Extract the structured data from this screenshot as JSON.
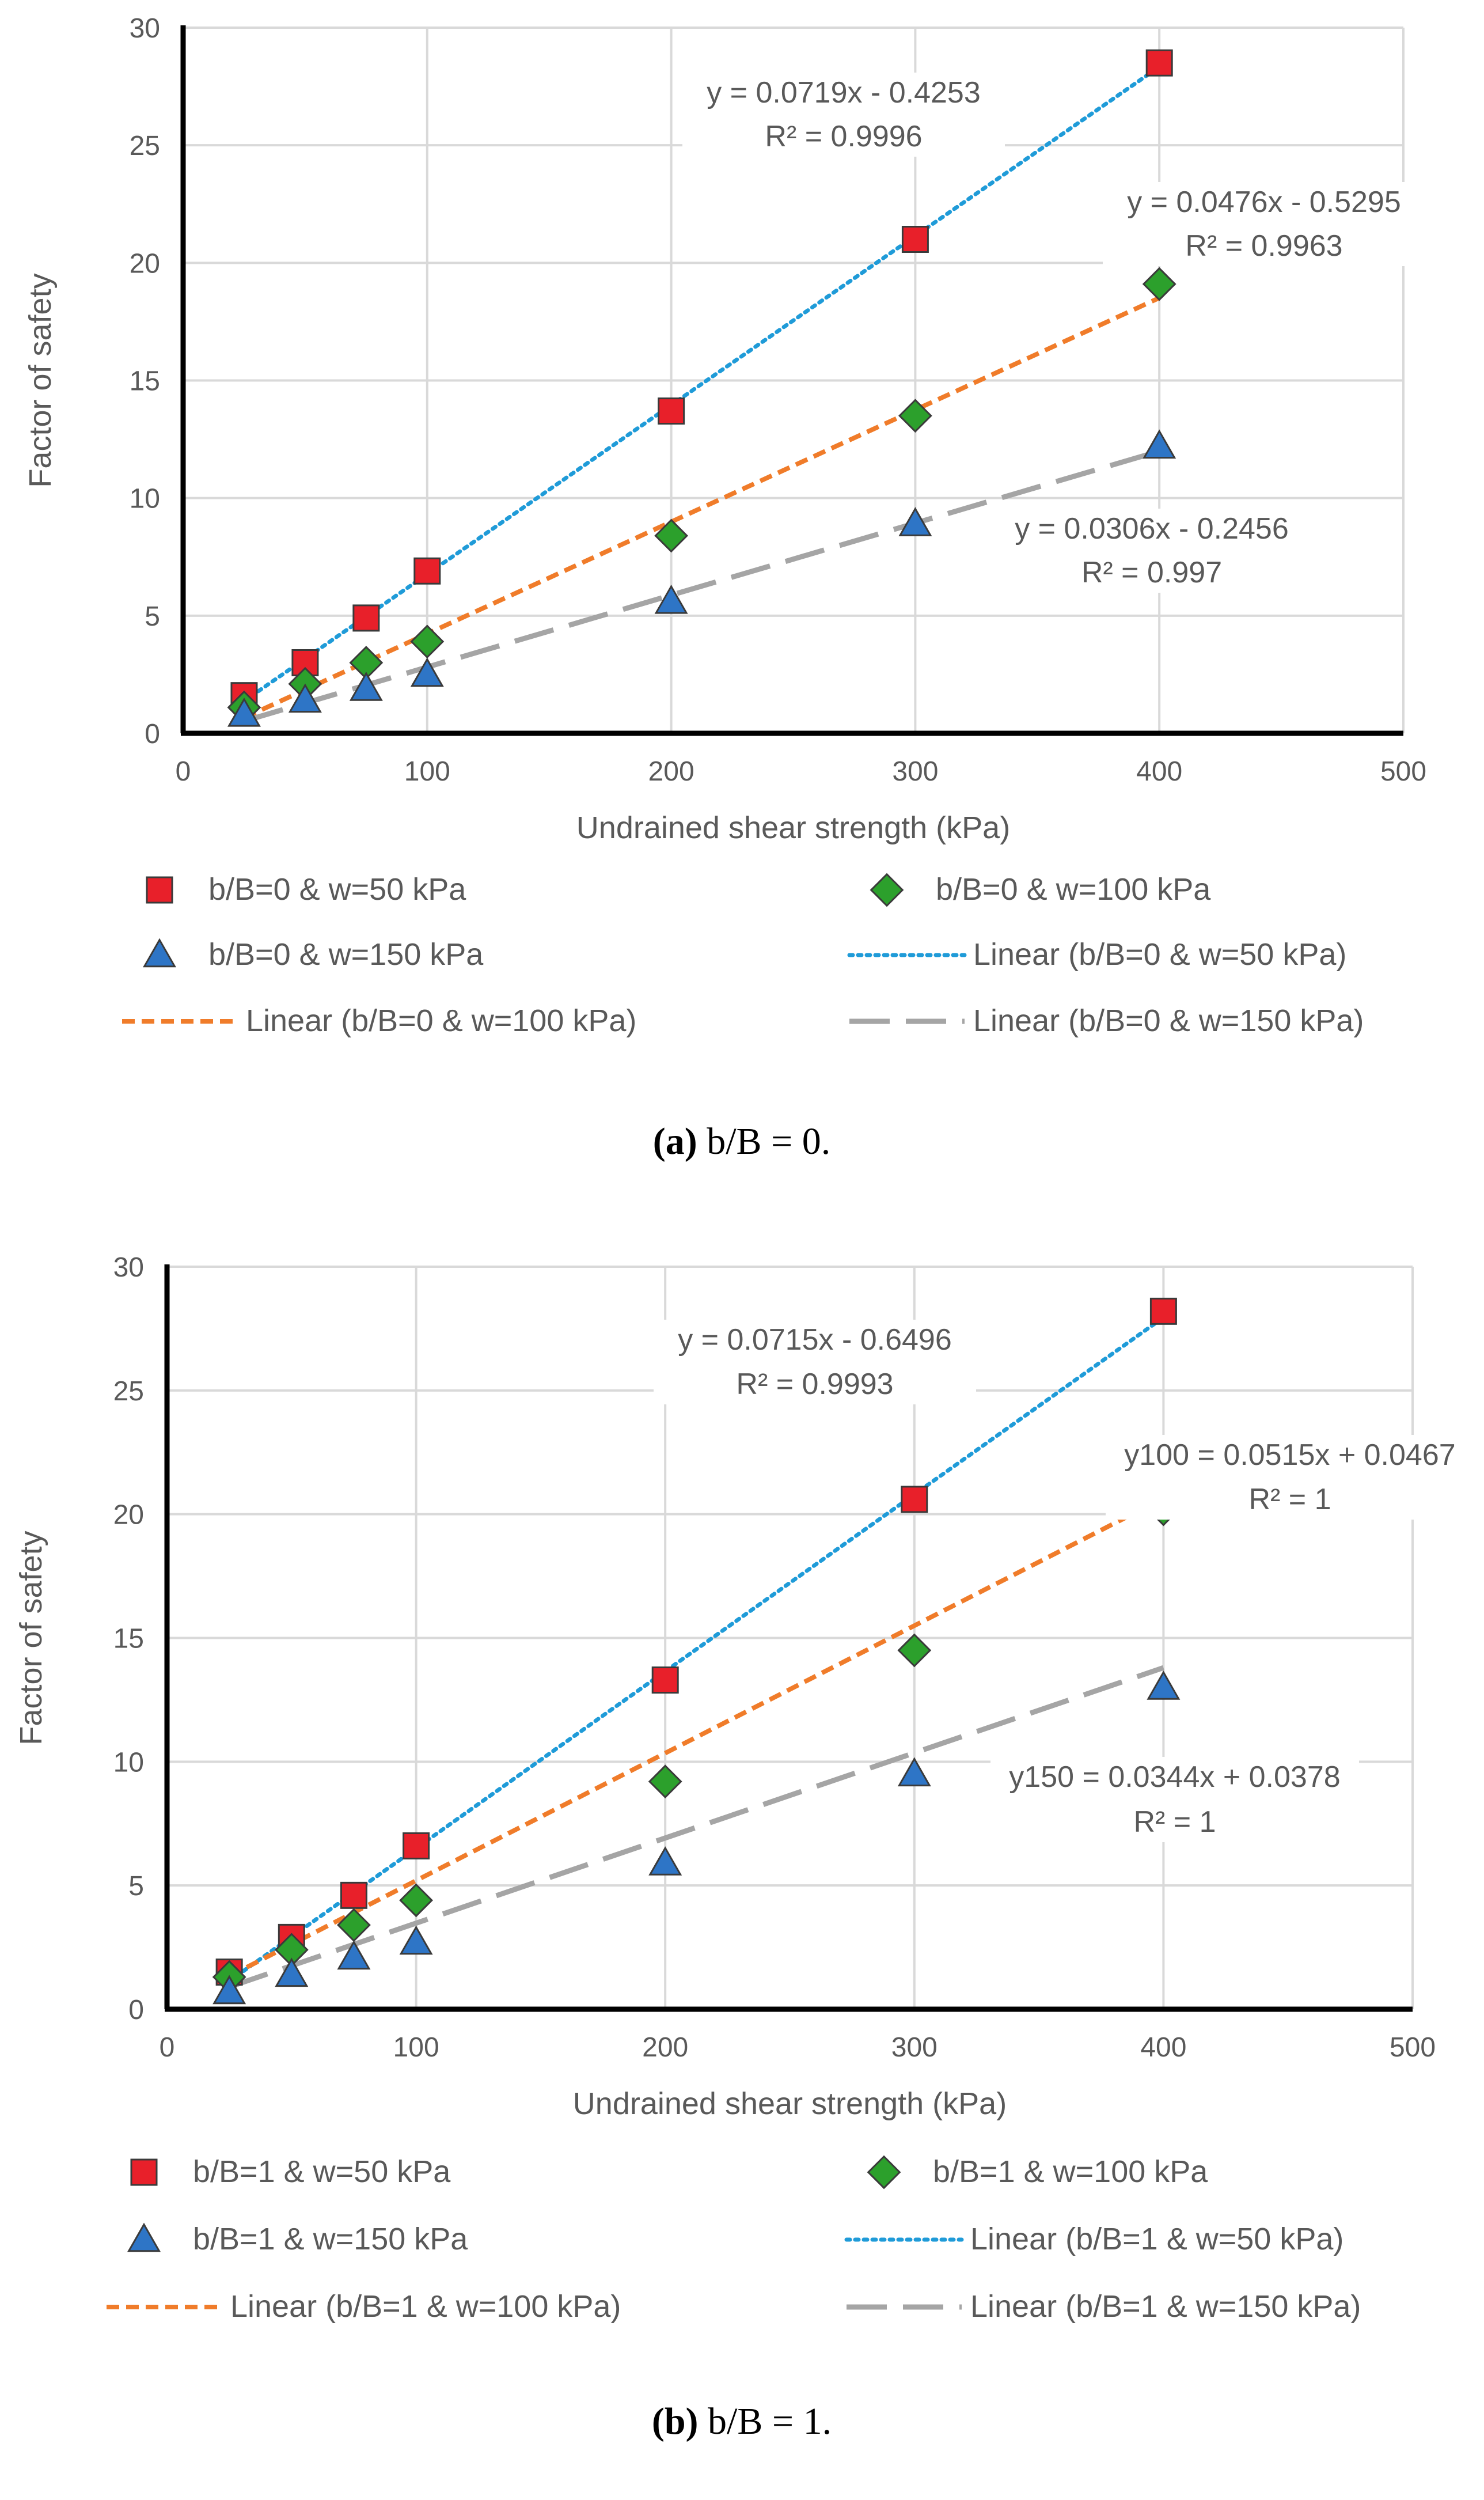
{
  "chart_data": [
    {
      "type": "scatter",
      "panel": "a",
      "xlabel": "Undrained shear strength (kPa)",
      "ylabel": "Factor of safety",
      "xlim": [
        0,
        500
      ],
      "ylim": [
        0,
        30
      ],
      "xticks": [
        "0",
        "100",
        "200",
        "300",
        "400",
        "500"
      ],
      "yticks": [
        "0",
        "5",
        "10",
        "15",
        "20",
        "25",
        "30"
      ],
      "grid": true,
      "legend_position": "bottom",
      "caption": {
        "letter": "(a)",
        "text": " b/B = 0."
      },
      "series": [
        {
          "name": "b/B=0 & w=50 kPa",
          "marker": "square",
          "color": "#e8202a",
          "x": [
            25,
            50,
            75,
            100,
            200,
            300,
            400
          ],
          "y": [
            1.6,
            3.0,
            4.9,
            6.9,
            13.7,
            21.0,
            28.5
          ]
        },
        {
          "name": "b/B=0 & w=100 kPa",
          "marker": "diamond",
          "color": "#2ca02c",
          "x": [
            25,
            50,
            75,
            100,
            200,
            300,
            400
          ],
          "y": [
            1.1,
            2.1,
            3.0,
            3.9,
            8.4,
            13.5,
            19.1
          ]
        },
        {
          "name": "b/B=0 & w=150 kPa",
          "marker": "triangle",
          "color": "#2e75c6",
          "x": [
            25,
            50,
            75,
            100,
            200,
            300,
            400
          ],
          "y": [
            0.8,
            1.4,
            1.9,
            2.5,
            5.6,
            8.9,
            12.2
          ]
        }
      ],
      "trendlines": [
        {
          "name": "Linear (b/B=0 & w=50 kPa)",
          "style": "dotted",
          "color": "#1f9bd8",
          "slope": 0.0719,
          "intercept": -0.4253,
          "x_range": [
            25,
            400
          ],
          "equation": "y = 0.0719x - 0.4253",
          "r2": "R² = 0.9996"
        },
        {
          "name": "Linear (b/B=0 & w=100 kPa)",
          "style": "dashed",
          "color": "#f07c2a",
          "slope": 0.0476,
          "intercept": -0.5295,
          "x_range": [
            25,
            400
          ],
          "equation": "y = 0.0476x - 0.5295",
          "r2": "R² = 0.9963"
        },
        {
          "name": "Linear (b/B=0 & w=150 kPa)",
          "style": "longdash",
          "color": "#a5a5a5",
          "slope": 0.0306,
          "intercept": -0.2456,
          "x_range": [
            25,
            400
          ],
          "equation": "y = 0.0306x - 0.2456",
          "r2": "R² = 0.997"
        }
      ]
    },
    {
      "type": "scatter",
      "panel": "b",
      "xlabel": "Undrained shear strength (kPa)",
      "ylabel": "Factor of safety",
      "xlim": [
        0,
        500
      ],
      "ylim": [
        0,
        30
      ],
      "xticks": [
        "0",
        "100",
        "200",
        "300",
        "400",
        "500"
      ],
      "yticks": [
        "0",
        "5",
        "10",
        "15",
        "20",
        "25",
        "30"
      ],
      "grid": true,
      "legend_position": "bottom",
      "caption": {
        "letter": "(b)",
        "text": " b/B = 1."
      },
      "series": [
        {
          "name": "b/B=1 & w=50 kPa",
          "marker": "square",
          "color": "#e8202a",
          "x": [
            25,
            50,
            75,
            100,
            200,
            300,
            400
          ],
          "y": [
            1.5,
            2.9,
            4.6,
            6.6,
            13.3,
            20.6,
            28.2
          ]
        },
        {
          "name": "b/B=1 & w=100 kPa",
          "marker": "diamond",
          "color": "#2ca02c",
          "x": [
            25,
            50,
            75,
            100,
            200,
            300,
            400
          ],
          "y": [
            1.3,
            2.4,
            3.4,
            4.4,
            9.2,
            14.5,
            20.2
          ]
        },
        {
          "name": "b/B=1 & w=150 kPa",
          "marker": "triangle",
          "color": "#2e75c6",
          "x": [
            25,
            50,
            75,
            100,
            200,
            300,
            400
          ],
          "y": [
            0.7,
            1.4,
            2.1,
            2.7,
            5.9,
            9.5,
            13.0
          ]
        }
      ],
      "trendlines": [
        {
          "name": "Linear (b/B=1 & w=50 kPa)",
          "style": "dotted",
          "color": "#1f9bd8",
          "slope": 0.0715,
          "intercept": -0.6496,
          "x_range": [
            25,
            400
          ],
          "equation": "y = 0.0715x - 0.6496",
          "r2": "R² = 0.9993"
        },
        {
          "name": "Linear (b/B=1 & w=100 kPa)",
          "style": "dashed",
          "color": "#f07c2a",
          "slope": 0.0515,
          "intercept": 0.0467,
          "x_range": [
            25,
            400
          ],
          "equation": "y100 = 0.0515x + 0.0467",
          "r2": "R² = 1"
        },
        {
          "name": "Linear (b/B=1 & w=150 kPa)",
          "style": "longdash",
          "color": "#a5a5a5",
          "slope": 0.0344,
          "intercept": 0.0378,
          "x_range": [
            25,
            400
          ],
          "equation": "y150 = 0.0344x + 0.0378",
          "r2": "R² = 1"
        }
      ]
    }
  ]
}
